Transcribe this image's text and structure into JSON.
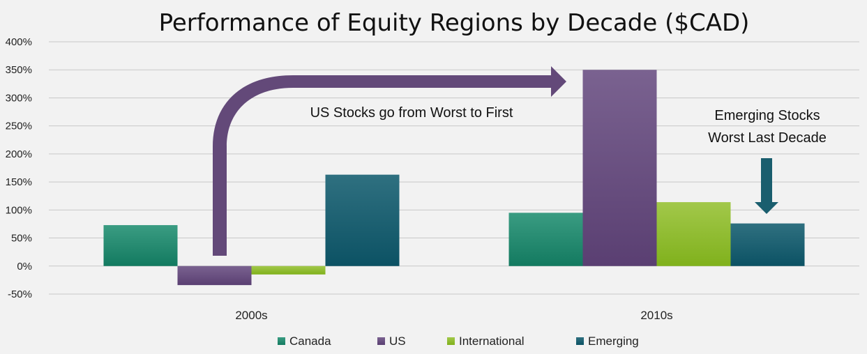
{
  "chart_data": {
    "type": "bar",
    "title": "Performance of Equity Regions by Decade ($CAD)",
    "categories": [
      "2000s",
      "2010s"
    ],
    "series": [
      {
        "name": "Canada",
        "values": [
          73,
          95
        ],
        "color": "#1f8a70"
      },
      {
        "name": "US",
        "values": [
          -34,
          350
        ],
        "color": "#634979"
      },
      {
        "name": "International",
        "values": [
          -15,
          114
        ],
        "color": "#8ab82a"
      },
      {
        "name": "Emerging",
        "values": [
          163,
          76
        ],
        "color": "#1a5e6e"
      }
    ],
    "ylim": [
      -50,
      400
    ],
    "yticks": [
      -50,
      0,
      50,
      100,
      150,
      200,
      250,
      300,
      350,
      400
    ],
    "ytick_labels": [
      "-50%",
      "0%",
      "50%",
      "100%",
      "150%",
      "200%",
      "250%",
      "300%",
      "350%",
      "400%"
    ],
    "grid": true,
    "legend": "bottom",
    "annotations": [
      {
        "lines": [
          "US Stocks go from Worst to First"
        ],
        "arrow_color": "#634979"
      },
      {
        "lines": [
          "Emerging Stocks",
          "Worst Last Decade"
        ],
        "arrow_color": "#1a5e6e"
      }
    ]
  }
}
